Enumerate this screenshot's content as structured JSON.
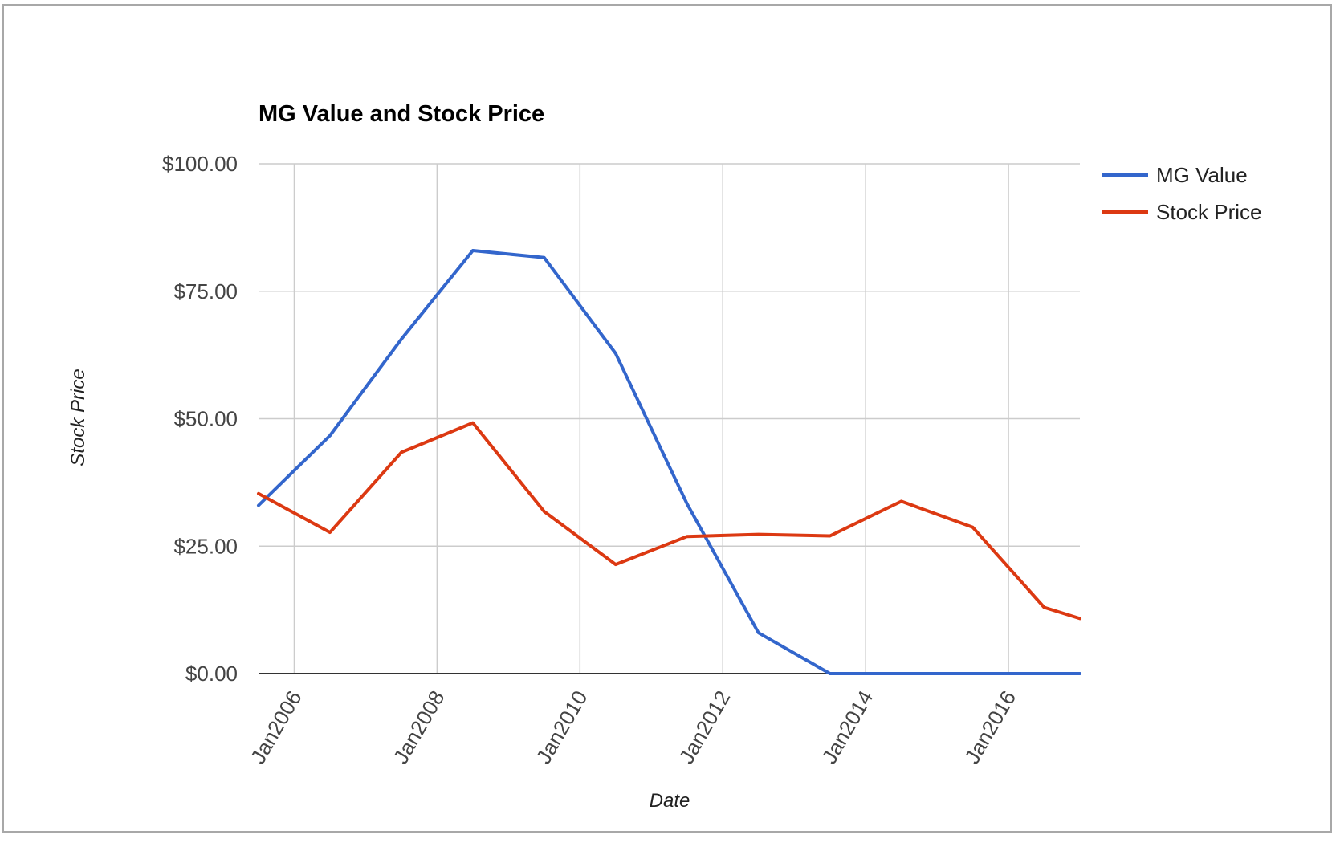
{
  "chart_data": {
    "type": "line",
    "title": "MG Value and Stock Price",
    "xlabel": "Date",
    "ylabel": "Stock Price",
    "x_tick_labels": [
      "Jan2006",
      "Jan2008",
      "Jan2010",
      "Jan2012",
      "Jan2014",
      "Jan2016"
    ],
    "x_ticks": [
      "2006-01",
      "2008-01",
      "2010-01",
      "2012-01",
      "2014-01",
      "2016-01"
    ],
    "x_range": [
      "2005-07",
      "2017-01"
    ],
    "y_tick_labels": [
      "$0.00",
      "$25.00",
      "$50.00",
      "$75.00",
      "$100.00"
    ],
    "y_ticks": [
      0,
      25,
      50,
      75,
      100
    ],
    "ylim": [
      0,
      100
    ],
    "grid": true,
    "legend_position": "top-right",
    "x": [
      "2005-07",
      "2006-07",
      "2007-07",
      "2008-07",
      "2009-07",
      "2010-07",
      "2011-07",
      "2012-07",
      "2013-07",
      "2014-07",
      "2015-07",
      "2016-07",
      "2017-01"
    ],
    "series": [
      {
        "name": "MG Value",
        "color": "#3366cc",
        "values": [
          33.0,
          46.7,
          65.6,
          83.0,
          81.6,
          62.8,
          33.3,
          8.0,
          0.0,
          0.0,
          0.0,
          0.0,
          0.0
        ]
      },
      {
        "name": "Stock Price",
        "color": "#dc3912",
        "values": [
          35.3,
          27.7,
          43.4,
          49.2,
          31.8,
          21.4,
          26.9,
          27.3,
          27.0,
          33.8,
          28.7,
          13.0,
          10.8
        ]
      }
    ]
  }
}
